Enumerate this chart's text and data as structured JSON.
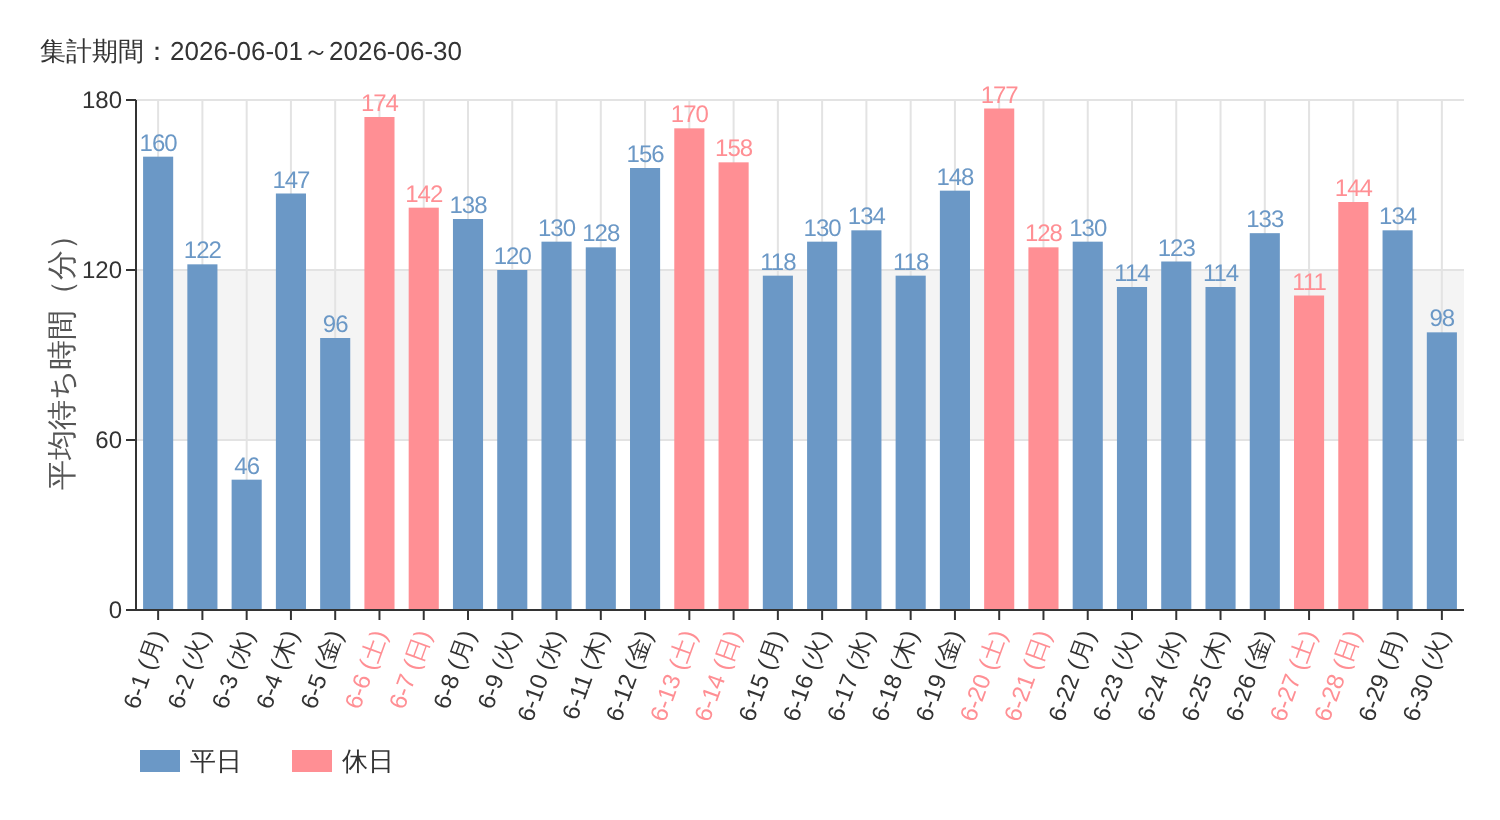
{
  "chart_data": {
    "type": "bar",
    "stacked": true,
    "title": "集計期間：2026-06-01～2026-06-30",
    "ylabel": "平均待ち時間（分）",
    "categories": [
      "6-1 (月)",
      "6-2 (火)",
      "6-3 (水)",
      "6-4 (木)",
      "6-5 (金)",
      "6-6 (土)",
      "6-7 (日)",
      "6-8 (月)",
      "6-9 (火)",
      "6-10 (水)",
      "6-11 (木)",
      "6-12 (金)",
      "6-13 (土)",
      "6-14 (日)",
      "6-15 (月)",
      "6-16 (火)",
      "6-17 (水)",
      "6-18 (木)",
      "6-19 (金)",
      "6-20 (土)",
      "6-21 (日)",
      "6-22 (月)",
      "6-23 (火)",
      "6-24 (水)",
      "6-25 (木)",
      "6-26 (金)",
      "6-27 (土)",
      "6-28 (日)",
      "6-29 (月)",
      "6-30 (火)"
    ],
    "series": [
      {
        "name": "平日",
        "color": "#6b98c6",
        "values": [
          160,
          122,
          46,
          147,
          96,
          null,
          null,
          138,
          120,
          130,
          128,
          156,
          null,
          null,
          118,
          130,
          134,
          118,
          148,
          null,
          null,
          130,
          114,
          123,
          114,
          133,
          null,
          null,
          134,
          98
        ]
      },
      {
        "name": "休日",
        "color": "#ff8f94",
        "values": [
          null,
          null,
          null,
          null,
          null,
          174,
          142,
          null,
          null,
          null,
          null,
          null,
          170,
          158,
          null,
          null,
          null,
          null,
          null,
          177,
          128,
          null,
          null,
          null,
          null,
          null,
          111,
          144,
          null,
          null
        ]
      }
    ],
    "ylim": [
      0,
      180
    ],
    "yticks": [
      0,
      60,
      120,
      180
    ],
    "grid": true,
    "legend": "bottom left",
    "data_labels": true,
    "bands": [
      {
        "axis": "y",
        "from": 60,
        "to": 120,
        "color": "#f4f4f4"
      }
    ]
  }
}
